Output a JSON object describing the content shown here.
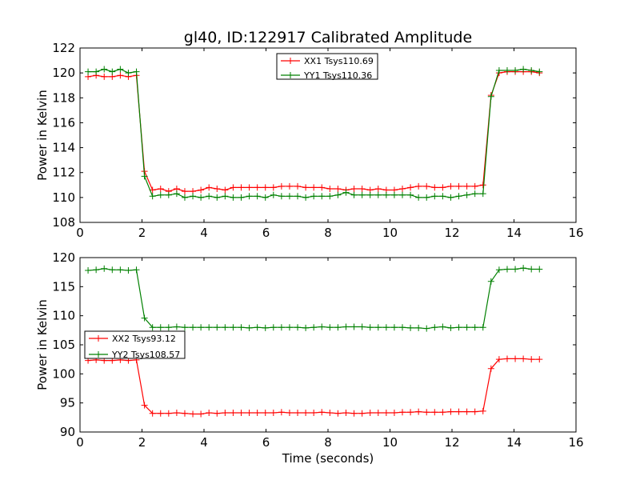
{
  "figure": {
    "title": "gl40, ID:122917 Calibrated Amplitude",
    "xlabel": "Time (seconds)"
  },
  "chart_data": [
    {
      "type": "line",
      "title": "gl40, ID:122917 Calibrated Amplitude",
      "xlabel": "",
      "ylabel": "Power in Kelvin",
      "xlim": [
        0,
        16
      ],
      "ylim": [
        108,
        122
      ],
      "xticks": [
        "0",
        "2",
        "4",
        "6",
        "8",
        "10",
        "12",
        "14",
        "16"
      ],
      "yticks": [
        "108",
        "110",
        "112",
        "114",
        "116",
        "118",
        "120",
        "122"
      ],
      "legend_position": "top-center",
      "grid": false,
      "x": [
        0.26,
        0.52,
        0.78,
        1.04,
        1.3,
        1.56,
        1.82,
        2.08,
        2.34,
        2.6,
        2.86,
        3.12,
        3.38,
        3.64,
        3.9,
        4.16,
        4.42,
        4.68,
        4.94,
        5.2,
        5.46,
        5.72,
        5.98,
        6.24,
        6.5,
        6.76,
        7.02,
        7.28,
        7.54,
        7.8,
        8.06,
        8.32,
        8.58,
        8.84,
        9.1,
        9.36,
        9.62,
        9.88,
        10.14,
        10.4,
        10.66,
        10.92,
        11.18,
        11.44,
        11.7,
        11.96,
        12.22,
        12.48,
        12.74,
        13.0,
        13.26,
        13.52,
        13.78,
        14.04,
        14.3,
        14.56,
        14.82
      ],
      "series": [
        {
          "name": "XX1 Tsys110.69",
          "color": "#ff0000",
          "values": [
            119.7,
            119.8,
            119.7,
            119.7,
            119.8,
            119.7,
            119.8,
            112.1,
            110.6,
            110.7,
            110.5,
            110.7,
            110.5,
            110.5,
            110.6,
            110.8,
            110.7,
            110.6,
            110.8,
            110.8,
            110.8,
            110.8,
            110.8,
            110.8,
            110.9,
            110.9,
            110.9,
            110.8,
            110.8,
            110.8,
            110.7,
            110.7,
            110.6,
            110.7,
            110.7,
            110.6,
            110.7,
            110.6,
            110.6,
            110.7,
            110.8,
            110.9,
            110.9,
            110.8,
            110.8,
            110.9,
            110.9,
            110.9,
            110.9,
            111.0,
            118.2,
            120.0,
            120.1,
            120.1,
            120.1,
            120.1,
            120.0
          ]
        },
        {
          "name": "YY1 Tsys110.36",
          "color": "#008000",
          "values": [
            120.1,
            120.1,
            120.3,
            120.1,
            120.3,
            120.0,
            120.1,
            111.7,
            110.1,
            110.2,
            110.2,
            110.3,
            110.0,
            110.1,
            110.0,
            110.1,
            110.0,
            110.1,
            110.0,
            110.0,
            110.1,
            110.1,
            110.0,
            110.2,
            110.1,
            110.1,
            110.1,
            110.0,
            110.1,
            110.1,
            110.1,
            110.2,
            110.4,
            110.2,
            110.2,
            110.2,
            110.2,
            110.2,
            110.2,
            110.2,
            110.2,
            110.0,
            110.0,
            110.1,
            110.1,
            110.0,
            110.1,
            110.2,
            110.3,
            110.3,
            118.1,
            120.2,
            120.2,
            120.2,
            120.3,
            120.2,
            120.1
          ]
        }
      ]
    },
    {
      "type": "line",
      "title": "",
      "xlabel": "Time (seconds)",
      "ylabel": "Power in Kelvin",
      "xlim": [
        0,
        16
      ],
      "ylim": [
        90,
        120
      ],
      "xticks": [
        "0",
        "2",
        "4",
        "6",
        "8",
        "10",
        "12",
        "14",
        "16"
      ],
      "yticks": [
        "90",
        "95",
        "100",
        "105",
        "110",
        "115",
        "120"
      ],
      "legend_position": "center-left",
      "grid": false,
      "x": [
        0.26,
        0.52,
        0.78,
        1.04,
        1.3,
        1.56,
        1.82,
        2.08,
        2.34,
        2.6,
        2.86,
        3.12,
        3.38,
        3.64,
        3.9,
        4.16,
        4.42,
        4.68,
        4.94,
        5.2,
        5.46,
        5.72,
        5.98,
        6.24,
        6.5,
        6.76,
        7.02,
        7.28,
        7.54,
        7.8,
        8.06,
        8.32,
        8.58,
        8.84,
        9.1,
        9.36,
        9.62,
        9.88,
        10.14,
        10.4,
        10.66,
        10.92,
        11.18,
        11.44,
        11.7,
        11.96,
        12.22,
        12.48,
        12.74,
        13.0,
        13.26,
        13.52,
        13.78,
        14.04,
        14.3,
        14.56,
        14.82
      ],
      "series": [
        {
          "name": "XX2 Tsys93.12",
          "color": "#ff0000",
          "values": [
            102.3,
            102.4,
            102.3,
            102.3,
            102.4,
            102.3,
            102.4,
            94.6,
            93.2,
            93.2,
            93.2,
            93.3,
            93.2,
            93.1,
            93.1,
            93.3,
            93.2,
            93.3,
            93.3,
            93.3,
            93.3,
            93.3,
            93.3,
            93.3,
            93.4,
            93.3,
            93.3,
            93.3,
            93.3,
            93.4,
            93.3,
            93.2,
            93.3,
            93.2,
            93.2,
            93.3,
            93.3,
            93.3,
            93.3,
            93.4,
            93.4,
            93.5,
            93.4,
            93.4,
            93.4,
            93.5,
            93.5,
            93.5,
            93.5,
            93.6,
            100.9,
            102.5,
            102.6,
            102.6,
            102.6,
            102.5,
            102.5
          ]
        },
        {
          "name": "YY2 Tsys108.57",
          "color": "#008000",
          "values": [
            117.8,
            117.9,
            118.1,
            117.9,
            117.9,
            117.8,
            117.9,
            109.6,
            108.0,
            108.0,
            108.0,
            108.1,
            108.0,
            108.0,
            108.0,
            108.0,
            108.0,
            108.0,
            108.0,
            108.0,
            107.9,
            108.0,
            107.9,
            108.0,
            108.0,
            108.0,
            108.0,
            107.9,
            108.0,
            108.1,
            108.0,
            108.0,
            108.1,
            108.1,
            108.1,
            108.0,
            108.0,
            108.0,
            108.0,
            108.0,
            107.9,
            107.9,
            107.8,
            108.0,
            108.1,
            107.9,
            108.0,
            108.0,
            108.0,
            108.0,
            115.9,
            117.9,
            118.0,
            118.0,
            118.2,
            118.0,
            118.0
          ]
        }
      ]
    }
  ]
}
